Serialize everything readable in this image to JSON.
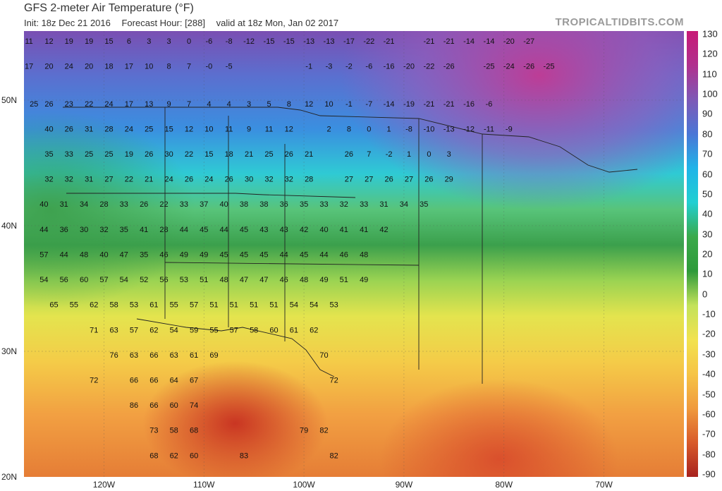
{
  "header": {
    "title": "GFS 2-meter Air Temperature (°F)",
    "init": "Init: 18z Dec 21 2016",
    "forecast_hour": "Forecast Hour: [288]",
    "valid": "valid at 18z Mon, Jan 02 2017",
    "credit": "TROPICALTIDBITS.COM"
  },
  "axes": {
    "lat_labels": [
      "50N",
      "40N",
      "30N",
      "20N"
    ],
    "lon_labels": [
      "120W",
      "110W",
      "100W",
      "90W",
      "80W",
      "70W"
    ]
  },
  "colorbar": {
    "labels": [
      "130",
      "120",
      "110",
      "100",
      "90",
      "80",
      "70",
      "60",
      "50",
      "40",
      "30",
      "20",
      "10",
      "0",
      "-10",
      "-20",
      "-30",
      "-40",
      "-50",
      "-60",
      "-70",
      "-80",
      "-90"
    ],
    "colors": [
      "#c81a76",
      "#b0308e",
      "#7e58b6",
      "#4a76d6",
      "#1fb4e8",
      "#20cfd2",
      "#3aaa4a",
      "#2e9a3a",
      "#c3e25a",
      "#f2e24e",
      "#f6c445",
      "#f09a3c",
      "#d85a2a",
      "#a8221e"
    ]
  },
  "temperatures": [
    {
      "lon": -127.5,
      "lat": 54.5,
      "v": "11"
    },
    {
      "lon": -125.5,
      "lat": 54.5,
      "v": "12"
    },
    {
      "lon": -123.5,
      "lat": 54.5,
      "v": "19"
    },
    {
      "lon": -121.5,
      "lat": 54.5,
      "v": "19"
    },
    {
      "lon": -119.5,
      "lat": 54.5,
      "v": "15"
    },
    {
      "lon": -117.5,
      "lat": 54.5,
      "v": "6"
    },
    {
      "lon": -115.5,
      "lat": 54.5,
      "v": "3"
    },
    {
      "lon": -113.5,
      "lat": 54.5,
      "v": "3"
    },
    {
      "lon": -111.5,
      "lat": 54.5,
      "v": "0"
    },
    {
      "lon": -109.5,
      "lat": 54.5,
      "v": "-6"
    },
    {
      "lon": -107.5,
      "lat": 54.5,
      "v": "-8"
    },
    {
      "lon": -105.5,
      "lat": 54.5,
      "v": "-12"
    },
    {
      "lon": -103.5,
      "lat": 54.5,
      "v": "-15"
    },
    {
      "lon": -101.5,
      "lat": 54.5,
      "v": "-15"
    },
    {
      "lon": -99.5,
      "lat": 54.5,
      "v": "-13"
    },
    {
      "lon": -97.5,
      "lat": 54.5,
      "v": "-13"
    },
    {
      "lon": -95.5,
      "lat": 54.5,
      "v": "-17"
    },
    {
      "lon": -93.5,
      "lat": 54.5,
      "v": "-22"
    },
    {
      "lon": -91.5,
      "lat": 54.5,
      "v": "-21"
    },
    {
      "lon": -87.5,
      "lat": 54.5,
      "v": "-21"
    },
    {
      "lon": -85.5,
      "lat": 54.5,
      "v": "-21"
    },
    {
      "lon": -83.5,
      "lat": 54.5,
      "v": "-14"
    },
    {
      "lon": -81.5,
      "lat": 54.5,
      "v": "-14"
    },
    {
      "lon": -79.5,
      "lat": 54.5,
      "v": "-20"
    },
    {
      "lon": -77.5,
      "lat": 54.5,
      "v": "-27"
    },
    {
      "lon": -127.5,
      "lat": 52.5,
      "v": "17"
    },
    {
      "lon": -125.5,
      "lat": 52.5,
      "v": "20"
    },
    {
      "lon": -123.5,
      "lat": 52.5,
      "v": "24"
    },
    {
      "lon": -121.5,
      "lat": 52.5,
      "v": "20"
    },
    {
      "lon": -119.5,
      "lat": 52.5,
      "v": "18"
    },
    {
      "lon": -117.5,
      "lat": 52.5,
      "v": "17"
    },
    {
      "lon": -115.5,
      "lat": 52.5,
      "v": "10"
    },
    {
      "lon": -113.5,
      "lat": 52.5,
      "v": "8"
    },
    {
      "lon": -111.5,
      "lat": 52.5,
      "v": "7"
    },
    {
      "lon": -109.5,
      "lat": 52.5,
      "v": "-0"
    },
    {
      "lon": -107.5,
      "lat": 52.5,
      "v": "-5"
    },
    {
      "lon": -99.5,
      "lat": 52.5,
      "v": "-1"
    },
    {
      "lon": -97.5,
      "lat": 52.5,
      "v": "-3"
    },
    {
      "lon": -95.5,
      "lat": 52.5,
      "v": "-2"
    },
    {
      "lon": -93.5,
      "lat": 52.5,
      "v": "-6"
    },
    {
      "lon": -91.5,
      "lat": 52.5,
      "v": "-16"
    },
    {
      "lon": -89.5,
      "lat": 52.5,
      "v": "-20"
    },
    {
      "lon": -87.5,
      "lat": 52.5,
      "v": "-22"
    },
    {
      "lon": -85.5,
      "lat": 52.5,
      "v": "-26"
    },
    {
      "lon": -81.5,
      "lat": 52.5,
      "v": "-25"
    },
    {
      "lon": -79.5,
      "lat": 52.5,
      "v": "-24"
    },
    {
      "lon": -77.5,
      "lat": 52.5,
      "v": "-26"
    },
    {
      "lon": -75.5,
      "lat": 52.5,
      "v": "-25"
    },
    {
      "lon": -127,
      "lat": 49.5,
      "v": "25"
    },
    {
      "lon": -125.5,
      "lat": 49.5,
      "v": "26"
    },
    {
      "lon": -123.5,
      "lat": 49.5,
      "v": "23"
    },
    {
      "lon": -121.5,
      "lat": 49.5,
      "v": "22"
    },
    {
      "lon": -119.5,
      "lat": 49.5,
      "v": "24"
    },
    {
      "lon": -117.5,
      "lat": 49.5,
      "v": "17"
    },
    {
      "lon": -115.5,
      "lat": 49.5,
      "v": "13"
    },
    {
      "lon": -113.5,
      "lat": 49.5,
      "v": "9"
    },
    {
      "lon": -111.5,
      "lat": 49.5,
      "v": "7"
    },
    {
      "lon": -109.5,
      "lat": 49.5,
      "v": "4"
    },
    {
      "lon": -107.5,
      "lat": 49.5,
      "v": "4"
    },
    {
      "lon": -105.5,
      "lat": 49.5,
      "v": "3"
    },
    {
      "lon": -103.5,
      "lat": 49.5,
      "v": "5"
    },
    {
      "lon": -101.5,
      "lat": 49.5,
      "v": "8"
    },
    {
      "lon": -99.5,
      "lat": 49.5,
      "v": "12"
    },
    {
      "lon": -97.5,
      "lat": 49.5,
      "v": "10"
    },
    {
      "lon": -95.5,
      "lat": 49.5,
      "v": "-1"
    },
    {
      "lon": -93.5,
      "lat": 49.5,
      "v": "-7"
    },
    {
      "lon": -91.5,
      "lat": 49.5,
      "v": "-14"
    },
    {
      "lon": -89.5,
      "lat": 49.5,
      "v": "-19"
    },
    {
      "lon": -87.5,
      "lat": 49.5,
      "v": "-21"
    },
    {
      "lon": -85.5,
      "lat": 49.5,
      "v": "-21"
    },
    {
      "lon": -83.5,
      "lat": 49.5,
      "v": "-16"
    },
    {
      "lon": -81.5,
      "lat": 49.5,
      "v": "-6"
    },
    {
      "lon": -125.5,
      "lat": 47.5,
      "v": "40"
    },
    {
      "lon": -123.5,
      "lat": 47.5,
      "v": "26"
    },
    {
      "lon": -121.5,
      "lat": 47.5,
      "v": "31"
    },
    {
      "lon": -119.5,
      "lat": 47.5,
      "v": "28"
    },
    {
      "lon": -117.5,
      "lat": 47.5,
      "v": "24"
    },
    {
      "lon": -115.5,
      "lat": 47.5,
      "v": "25"
    },
    {
      "lon": -113.5,
      "lat": 47.5,
      "v": "15"
    },
    {
      "lon": -111.5,
      "lat": 47.5,
      "v": "12"
    },
    {
      "lon": -109.5,
      "lat": 47.5,
      "v": "10"
    },
    {
      "lon": -107.5,
      "lat": 47.5,
      "v": "11"
    },
    {
      "lon": -105.5,
      "lat": 47.5,
      "v": "9"
    },
    {
      "lon": -103.5,
      "lat": 47.5,
      "v": "11"
    },
    {
      "lon": -101.5,
      "lat": 47.5,
      "v": "12"
    },
    {
      "lon": -97.5,
      "lat": 47.5,
      "v": "2"
    },
    {
      "lon": -95.5,
      "lat": 47.5,
      "v": "8"
    },
    {
      "lon": -93.5,
      "lat": 47.5,
      "v": "0"
    },
    {
      "lon": -91.5,
      "lat": 47.5,
      "v": "1"
    },
    {
      "lon": -89.5,
      "lat": 47.5,
      "v": "-8"
    },
    {
      "lon": -87.5,
      "lat": 47.5,
      "v": "-10"
    },
    {
      "lon": -85.5,
      "lat": 47.5,
      "v": "-13"
    },
    {
      "lon": -83.5,
      "lat": 47.5,
      "v": "-12"
    },
    {
      "lon": -81.5,
      "lat": 47.5,
      "v": "-11"
    },
    {
      "lon": -79.5,
      "lat": 47.5,
      "v": "-9"
    },
    {
      "lon": -125.5,
      "lat": 45.5,
      "v": "35"
    },
    {
      "lon": -123.5,
      "lat": 45.5,
      "v": "33"
    },
    {
      "lon": -121.5,
      "lat": 45.5,
      "v": "25"
    },
    {
      "lon": -119.5,
      "lat": 45.5,
      "v": "25"
    },
    {
      "lon": -117.5,
      "lat": 45.5,
      "v": "19"
    },
    {
      "lon": -115.5,
      "lat": 45.5,
      "v": "26"
    },
    {
      "lon": -113.5,
      "lat": 45.5,
      "v": "30"
    },
    {
      "lon": -111.5,
      "lat": 45.5,
      "v": "22"
    },
    {
      "lon": -109.5,
      "lat": 45.5,
      "v": "15"
    },
    {
      "lon": -107.5,
      "lat": 45.5,
      "v": "18"
    },
    {
      "lon": -105.5,
      "lat": 45.5,
      "v": "21"
    },
    {
      "lon": -103.5,
      "lat": 45.5,
      "v": "25"
    },
    {
      "lon": -101.5,
      "lat": 45.5,
      "v": "26"
    },
    {
      "lon": -99.5,
      "lat": 45.5,
      "v": "21"
    },
    {
      "lon": -95.5,
      "lat": 45.5,
      "v": "26"
    },
    {
      "lon": -93.5,
      "lat": 45.5,
      "v": "7"
    },
    {
      "lon": -91.5,
      "lat": 45.5,
      "v": "-2"
    },
    {
      "lon": -89.5,
      "lat": 45.5,
      "v": "1"
    },
    {
      "lon": -87.5,
      "lat": 45.5,
      "v": "0"
    },
    {
      "lon": -85.5,
      "lat": 45.5,
      "v": "3"
    },
    {
      "lon": -125.5,
      "lat": 43.5,
      "v": "32"
    },
    {
      "lon": -123.5,
      "lat": 43.5,
      "v": "32"
    },
    {
      "lon": -121.5,
      "lat": 43.5,
      "v": "31"
    },
    {
      "lon": -119.5,
      "lat": 43.5,
      "v": "27"
    },
    {
      "lon": -117.5,
      "lat": 43.5,
      "v": "22"
    },
    {
      "lon": -115.5,
      "lat": 43.5,
      "v": "21"
    },
    {
      "lon": -113.5,
      "lat": 43.5,
      "v": "24"
    },
    {
      "lon": -111.5,
      "lat": 43.5,
      "v": "26"
    },
    {
      "lon": -109.5,
      "lat": 43.5,
      "v": "24"
    },
    {
      "lon": -107.5,
      "lat": 43.5,
      "v": "26"
    },
    {
      "lon": -105.5,
      "lat": 43.5,
      "v": "30"
    },
    {
      "lon": -103.5,
      "lat": 43.5,
      "v": "32"
    },
    {
      "lon": -101.5,
      "lat": 43.5,
      "v": "32"
    },
    {
      "lon": -99.5,
      "lat": 43.5,
      "v": "28"
    },
    {
      "lon": -95.5,
      "lat": 43.5,
      "v": "27"
    },
    {
      "lon": -93.5,
      "lat": 43.5,
      "v": "27"
    },
    {
      "lon": -91.5,
      "lat": 43.5,
      "v": "26"
    },
    {
      "lon": -89.5,
      "lat": 43.5,
      "v": "27"
    },
    {
      "lon": -87.5,
      "lat": 43.5,
      "v": "26"
    },
    {
      "lon": -85.5,
      "lat": 43.5,
      "v": "29"
    },
    {
      "lon": -126,
      "lat": 41.5,
      "v": "40"
    },
    {
      "lon": -124,
      "lat": 41.5,
      "v": "31"
    },
    {
      "lon": -122,
      "lat": 41.5,
      "v": "34"
    },
    {
      "lon": -120,
      "lat": 41.5,
      "v": "28"
    },
    {
      "lon": -118,
      "lat": 41.5,
      "v": "33"
    },
    {
      "lon": -116,
      "lat": 41.5,
      "v": "26"
    },
    {
      "lon": -114,
      "lat": 41.5,
      "v": "22"
    },
    {
      "lon": -112,
      "lat": 41.5,
      "v": "33"
    },
    {
      "lon": -110,
      "lat": 41.5,
      "v": "37"
    },
    {
      "lon": -108,
      "lat": 41.5,
      "v": "40"
    },
    {
      "lon": -106,
      "lat": 41.5,
      "v": "38"
    },
    {
      "lon": -104,
      "lat": 41.5,
      "v": "38"
    },
    {
      "lon": -102,
      "lat": 41.5,
      "v": "36"
    },
    {
      "lon": -100,
      "lat": 41.5,
      "v": "35"
    },
    {
      "lon": -98,
      "lat": 41.5,
      "v": "33"
    },
    {
      "lon": -96,
      "lat": 41.5,
      "v": "32"
    },
    {
      "lon": -94,
      "lat": 41.5,
      "v": "33"
    },
    {
      "lon": -92,
      "lat": 41.5,
      "v": "31"
    },
    {
      "lon": -90,
      "lat": 41.5,
      "v": "34"
    },
    {
      "lon": -88,
      "lat": 41.5,
      "v": "35"
    },
    {
      "lon": -126,
      "lat": 39.5,
      "v": "44"
    },
    {
      "lon": -124,
      "lat": 39.5,
      "v": "36"
    },
    {
      "lon": -122,
      "lat": 39.5,
      "v": "30"
    },
    {
      "lon": -120,
      "lat": 39.5,
      "v": "32"
    },
    {
      "lon": -118,
      "lat": 39.5,
      "v": "35"
    },
    {
      "lon": -116,
      "lat": 39.5,
      "v": "41"
    },
    {
      "lon": -114,
      "lat": 39.5,
      "v": "28"
    },
    {
      "lon": -112,
      "lat": 39.5,
      "v": "44"
    },
    {
      "lon": -110,
      "lat": 39.5,
      "v": "45"
    },
    {
      "lon": -108,
      "lat": 39.5,
      "v": "44"
    },
    {
      "lon": -106,
      "lat": 39.5,
      "v": "45"
    },
    {
      "lon": -104,
      "lat": 39.5,
      "v": "43"
    },
    {
      "lon": -102,
      "lat": 39.5,
      "v": "43"
    },
    {
      "lon": -100,
      "lat": 39.5,
      "v": "42"
    },
    {
      "lon": -98,
      "lat": 39.5,
      "v": "40"
    },
    {
      "lon": -96,
      "lat": 39.5,
      "v": "41"
    },
    {
      "lon": -94,
      "lat": 39.5,
      "v": "41"
    },
    {
      "lon": -92,
      "lat": 39.5,
      "v": "42"
    },
    {
      "lon": -126,
      "lat": 37.5,
      "v": "57"
    },
    {
      "lon": -124,
      "lat": 37.5,
      "v": "44"
    },
    {
      "lon": -122,
      "lat": 37.5,
      "v": "48"
    },
    {
      "lon": -120,
      "lat": 37.5,
      "v": "40"
    },
    {
      "lon": -118,
      "lat": 37.5,
      "v": "47"
    },
    {
      "lon": -116,
      "lat": 37.5,
      "v": "35"
    },
    {
      "lon": -114,
      "lat": 37.5,
      "v": "46"
    },
    {
      "lon": -112,
      "lat": 37.5,
      "v": "49"
    },
    {
      "lon": -110,
      "lat": 37.5,
      "v": "49"
    },
    {
      "lon": -108,
      "lat": 37.5,
      "v": "45"
    },
    {
      "lon": -106,
      "lat": 37.5,
      "v": "45"
    },
    {
      "lon": -104,
      "lat": 37.5,
      "v": "45"
    },
    {
      "lon": -102,
      "lat": 37.5,
      "v": "44"
    },
    {
      "lon": -100,
      "lat": 37.5,
      "v": "45"
    },
    {
      "lon": -98,
      "lat": 37.5,
      "v": "44"
    },
    {
      "lon": -96,
      "lat": 37.5,
      "v": "46"
    },
    {
      "lon": -94,
      "lat": 37.5,
      "v": "48"
    },
    {
      "lon": -126,
      "lat": 35.5,
      "v": "54"
    },
    {
      "lon": -124,
      "lat": 35.5,
      "v": "56"
    },
    {
      "lon": -122,
      "lat": 35.5,
      "v": "60"
    },
    {
      "lon": -120,
      "lat": 35.5,
      "v": "57"
    },
    {
      "lon": -118,
      "lat": 35.5,
      "v": "54"
    },
    {
      "lon": -116,
      "lat": 35.5,
      "v": "52"
    },
    {
      "lon": -114,
      "lat": 35.5,
      "v": "56"
    },
    {
      "lon": -112,
      "lat": 35.5,
      "v": "53"
    },
    {
      "lon": -110,
      "lat": 35.5,
      "v": "51"
    },
    {
      "lon": -108,
      "lat": 35.5,
      "v": "48"
    },
    {
      "lon": -106,
      "lat": 35.5,
      "v": "47"
    },
    {
      "lon": -104,
      "lat": 35.5,
      "v": "47"
    },
    {
      "lon": -102,
      "lat": 35.5,
      "v": "46"
    },
    {
      "lon": -100,
      "lat": 35.5,
      "v": "48"
    },
    {
      "lon": -98,
      "lat": 35.5,
      "v": "49"
    },
    {
      "lon": -96,
      "lat": 35.5,
      "v": "51"
    },
    {
      "lon": -94,
      "lat": 35.5,
      "v": "49"
    },
    {
      "lon": -125,
      "lat": 33.5,
      "v": "65"
    },
    {
      "lon": -123,
      "lat": 33.5,
      "v": "55"
    },
    {
      "lon": -121,
      "lat": 33.5,
      "v": "62"
    },
    {
      "lon": -119,
      "lat": 33.5,
      "v": "58"
    },
    {
      "lon": -117,
      "lat": 33.5,
      "v": "53"
    },
    {
      "lon": -115,
      "lat": 33.5,
      "v": "61"
    },
    {
      "lon": -113,
      "lat": 33.5,
      "v": "55"
    },
    {
      "lon": -111,
      "lat": 33.5,
      "v": "57"
    },
    {
      "lon": -109,
      "lat": 33.5,
      "v": "51"
    },
    {
      "lon": -107,
      "lat": 33.5,
      "v": "51"
    },
    {
      "lon": -105,
      "lat": 33.5,
      "v": "51"
    },
    {
      "lon": -103,
      "lat": 33.5,
      "v": "51"
    },
    {
      "lon": -101,
      "lat": 33.5,
      "v": "54"
    },
    {
      "lon": -99,
      "lat": 33.5,
      "v": "54"
    },
    {
      "lon": -97,
      "lat": 33.5,
      "v": "53"
    },
    {
      "lon": -121,
      "lat": 31.5,
      "v": "71"
    },
    {
      "lon": -119,
      "lat": 31.5,
      "v": "63"
    },
    {
      "lon": -117,
      "lat": 31.5,
      "v": "57"
    },
    {
      "lon": -115,
      "lat": 31.5,
      "v": "62"
    },
    {
      "lon": -113,
      "lat": 31.5,
      "v": "54"
    },
    {
      "lon": -111,
      "lat": 31.5,
      "v": "59"
    },
    {
      "lon": -109,
      "lat": 31.5,
      "v": "55"
    },
    {
      "lon": -107,
      "lat": 31.5,
      "v": "57"
    },
    {
      "lon": -105,
      "lat": 31.5,
      "v": "58"
    },
    {
      "lon": -103,
      "lat": 31.5,
      "v": "60"
    },
    {
      "lon": -101,
      "lat": 31.5,
      "v": "61"
    },
    {
      "lon": -99,
      "lat": 31.5,
      "v": "62"
    },
    {
      "lon": -119,
      "lat": 29.5,
      "v": "76"
    },
    {
      "lon": -117,
      "lat": 29.5,
      "v": "63"
    },
    {
      "lon": -115,
      "lat": 29.5,
      "v": "66"
    },
    {
      "lon": -113,
      "lat": 29.5,
      "v": "63"
    },
    {
      "lon": -111,
      "lat": 29.5,
      "v": "61"
    },
    {
      "lon": -109,
      "lat": 29.5,
      "v": "69"
    },
    {
      "lon": -98,
      "lat": 29.5,
      "v": "70"
    },
    {
      "lon": -121,
      "lat": 27.5,
      "v": "72"
    },
    {
      "lon": -117,
      "lat": 27.5,
      "v": "66"
    },
    {
      "lon": -115,
      "lat": 27.5,
      "v": "66"
    },
    {
      "lon": -113,
      "lat": 27.5,
      "v": "64"
    },
    {
      "lon": -111,
      "lat": 27.5,
      "v": "67"
    },
    {
      "lon": -97,
      "lat": 27.5,
      "v": "72"
    },
    {
      "lon": -117,
      "lat": 25.5,
      "v": "86"
    },
    {
      "lon": -115,
      "lat": 25.5,
      "v": "66"
    },
    {
      "lon": -113,
      "lat": 25.5,
      "v": "60"
    },
    {
      "lon": -111,
      "lat": 25.5,
      "v": "74"
    },
    {
      "lon": -115,
      "lat": 23.5,
      "v": "73"
    },
    {
      "lon": -113,
      "lat": 23.5,
      "v": "58"
    },
    {
      "lon": -111,
      "lat": 23.5,
      "v": "68"
    },
    {
      "lon": -100,
      "lat": 23.5,
      "v": "79"
    },
    {
      "lon": -98,
      "lat": 23.5,
      "v": "82"
    },
    {
      "lon": -115,
      "lat": 21.5,
      "v": "68"
    },
    {
      "lon": -113,
      "lat": 21.5,
      "v": "62"
    },
    {
      "lon": -111,
      "lat": 21.5,
      "v": "60"
    },
    {
      "lon": -106,
      "lat": 21.5,
      "v": "83"
    },
    {
      "lon": -97,
      "lat": 21.5,
      "v": "82"
    }
  ]
}
